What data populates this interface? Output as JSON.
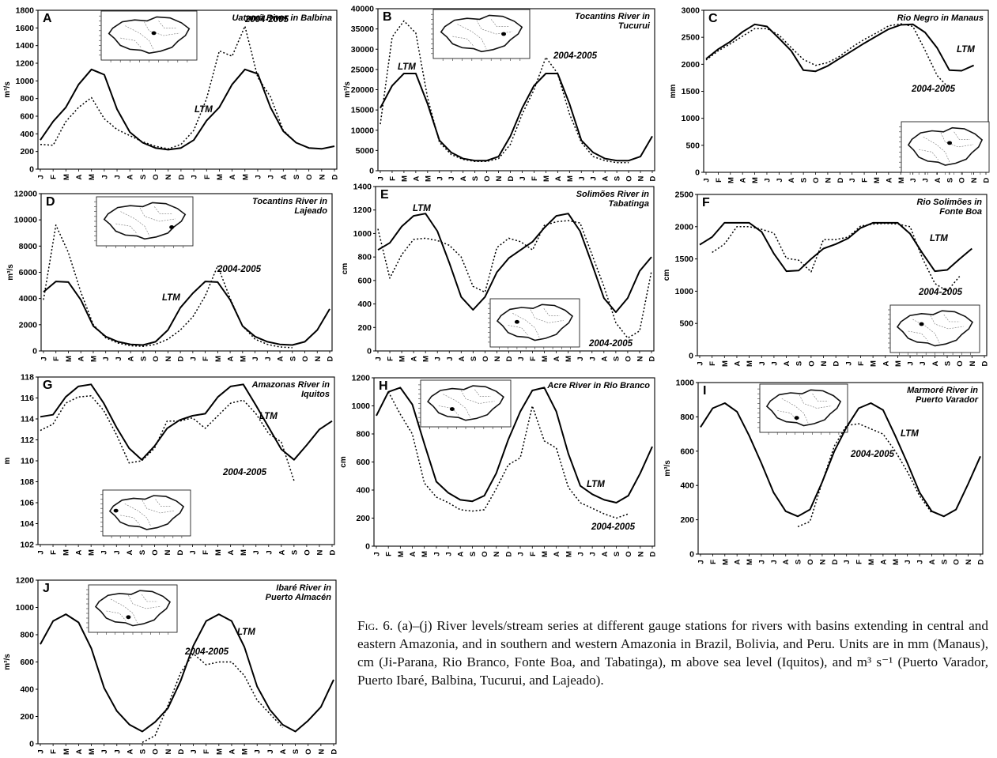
{
  "months": [
    "J",
    "F",
    "M",
    "A",
    "M",
    "J",
    "J",
    "A",
    "S",
    "O",
    "N",
    "D",
    "J",
    "F",
    "M",
    "A",
    "M",
    "J",
    "J",
    "A",
    "S",
    "O",
    "N",
    "D"
  ],
  "legend": {
    "ltm": "LTM",
    "recent": "2004-2005"
  },
  "chart_data": [
    {
      "id": "A",
      "type": "line",
      "title": "Uatumã River in Balbina",
      "ylabel": "m³/s",
      "ylim": [
        0,
        1800
      ],
      "yticks": [
        0,
        200,
        400,
        600,
        800,
        1000,
        1200,
        1400,
        1600,
        1800
      ],
      "series": [
        {
          "name": "LTM",
          "values": [
            330,
            540,
            700,
            960,
            1130,
            1070,
            680,
            420,
            300,
            240,
            220,
            240,
            330,
            550,
            700,
            960,
            1130,
            1080,
            700,
            430,
            300,
            240,
            230,
            260
          ]
        },
        {
          "name": "2004-2005",
          "values": [
            280,
            270,
            540,
            700,
            810,
            570,
            450,
            380,
            310,
            260,
            230,
            280,
            440,
            800,
            1340,
            1280,
            1620,
            1040,
            820,
            440,
            300,
            240,
            null,
            null
          ]
        }
      ]
    },
    {
      "id": "B",
      "type": "line",
      "title": "Tocantins River in Tucurui",
      "ylabel": "m³/s",
      "ylim": [
        0,
        40000
      ],
      "yticks": [
        0,
        5000,
        10000,
        15000,
        20000,
        25000,
        30000,
        35000,
        40000
      ],
      "series": [
        {
          "name": "LTM",
          "values": [
            15500,
            21000,
            24000,
            24000,
            16500,
            7500,
            4500,
            3000,
            2500,
            2500,
            3500,
            8500,
            15500,
            21000,
            24000,
            24000,
            16500,
            7500,
            4500,
            3000,
            2500,
            2500,
            3500,
            8500
          ]
        },
        {
          "name": "2004-2005",
          "values": [
            11500,
            33000,
            37000,
            34000,
            18000,
            7000,
            4000,
            2800,
            2300,
            2300,
            3000,
            6500,
            14000,
            20000,
            28000,
            24000,
            14000,
            7000,
            3500,
            2500,
            2000,
            2000,
            null,
            null
          ]
        }
      ]
    },
    {
      "id": "C",
      "type": "line",
      "title": "Rio Negro in Manaus",
      "ylabel": "mm",
      "ylim": [
        0,
        3000
      ],
      "yticks": [
        0,
        500,
        1000,
        1500,
        2000,
        2500,
        3000
      ],
      "series": [
        {
          "name": "LTM",
          "values": [
            2100,
            2280,
            2420,
            2600,
            2740,
            2700,
            2480,
            2250,
            1890,
            1870,
            1970,
            2110,
            2250,
            2390,
            2520,
            2650,
            2730,
            2740,
            2590,
            2300,
            1890,
            1880,
            1980,
            null
          ]
        },
        {
          "name": "2004-2005",
          "values": [
            2080,
            2250,
            2380,
            2520,
            2660,
            2660,
            2540,
            2310,
            2090,
            1980,
            2030,
            2150,
            2320,
            2460,
            2580,
            2710,
            2750,
            2700,
            2260,
            1790,
            1550,
            null,
            null,
            null
          ]
        }
      ]
    },
    {
      "id": "D",
      "type": "line",
      "title": "Tocantins River in Lajeado",
      "ylabel": "m³/s",
      "ylim": [
        0,
        12000
      ],
      "yticks": [
        0,
        2000,
        4000,
        6000,
        8000,
        10000,
        12000
      ],
      "series": [
        {
          "name": "LTM",
          "values": [
            4500,
            5300,
            5250,
            3900,
            1900,
            1100,
            700,
            500,
            450,
            700,
            1600,
            3300,
            4400,
            5300,
            5250,
            3900,
            1900,
            1100,
            700,
            500,
            450,
            700,
            1600,
            3200
          ]
        },
        {
          "name": "2004-2005",
          "values": [
            3900,
            9600,
            7500,
            4500,
            2000,
            1000,
            600,
            400,
            350,
            500,
            900,
            1600,
            2600,
            4200,
            6500,
            4000,
            1900,
            900,
            500,
            300,
            250,
            null,
            null,
            null
          ]
        }
      ]
    },
    {
      "id": "E",
      "type": "line",
      "title": "Solimões River in Tabatinga",
      "ylabel": "cm",
      "ylim": [
        0,
        1400
      ],
      "yticks": [
        0,
        200,
        400,
        600,
        800,
        1000,
        1200,
        1400
      ],
      "series": [
        {
          "name": "LTM",
          "values": [
            860,
            920,
            1060,
            1150,
            1170,
            1020,
            750,
            460,
            350,
            460,
            670,
            790,
            860,
            930,
            1050,
            1150,
            1170,
            1020,
            740,
            450,
            330,
            450,
            680,
            800
          ]
        },
        {
          "name": "2004-2005",
          "values": [
            1040,
            620,
            820,
            950,
            960,
            940,
            900,
            800,
            550,
            500,
            880,
            960,
            930,
            860,
            1070,
            1100,
            1110,
            1090,
            820,
            550,
            240,
            110,
            170,
            680
          ]
        }
      ]
    },
    {
      "id": "F",
      "type": "line",
      "title": "Rio Solimões in Fonte Boa",
      "ylabel": "cm",
      "ylim": [
        0,
        2500
      ],
      "yticks": [
        0,
        500,
        1000,
        1500,
        2000,
        2500
      ],
      "series": [
        {
          "name": "LTM",
          "values": [
            1720,
            1840,
            2060,
            2060,
            2060,
            1920,
            1580,
            1310,
            1320,
            1500,
            1660,
            1730,
            1820,
            1980,
            2060,
            2060,
            2060,
            1890,
            1590,
            1310,
            1330,
            1500,
            1660,
            null
          ]
        },
        {
          "name": "2004-2005",
          "values": [
            null,
            1600,
            1730,
            2000,
            2000,
            1960,
            1900,
            1510,
            1480,
            1300,
            1800,
            1800,
            1840,
            2010,
            2040,
            2050,
            2040,
            2000,
            1510,
            1120,
            1000,
            1230,
            null,
            null
          ]
        }
      ]
    },
    {
      "id": "G",
      "type": "line",
      "title": "Amazonas River in Iquitos",
      "ylabel": "m",
      "ylim": [
        102,
        118
      ],
      "yticks": [
        102,
        104,
        106,
        108,
        110,
        112,
        114,
        116,
        118
      ],
      "series": [
        {
          "name": "LTM",
          "values": [
            114.2,
            114.4,
            116.1,
            117.1,
            117.3,
            115.5,
            113.2,
            111.2,
            110.1,
            111.4,
            113.1,
            113.9,
            114.3,
            114.5,
            116.1,
            117.1,
            117.3,
            115.3,
            113.2,
            111.1,
            110.1,
            111.5,
            113.0,
            113.8
          ]
        },
        {
          "name": "2004-2005",
          "values": [
            112.9,
            113.5,
            115.5,
            116.1,
            116.2,
            114.8,
            112.5,
            109.8,
            110.0,
            111.2,
            113.8,
            113.8,
            114.1,
            113.1,
            114.3,
            115.5,
            115.8,
            114.5,
            112.6,
            111.8,
            108.1,
            null,
            null,
            null
          ]
        }
      ]
    },
    {
      "id": "H",
      "type": "line",
      "title": "Acre River in Rio Branco",
      "ylabel": "cm",
      "ylim": [
        0,
        1200
      ],
      "yticks": [
        0,
        200,
        400,
        600,
        800,
        1000,
        1200
      ],
      "series": [
        {
          "name": "LTM",
          "values": [
            930,
            1100,
            1130,
            1010,
            730,
            460,
            380,
            330,
            320,
            360,
            520,
            760,
            960,
            1110,
            1130,
            960,
            660,
            430,
            370,
            330,
            310,
            360,
            520,
            710
          ]
        },
        {
          "name": "2004-2005",
          "values": [
            null,
            1100,
            940,
            800,
            450,
            350,
            310,
            260,
            250,
            260,
            410,
            580,
            630,
            1000,
            750,
            700,
            420,
            310,
            270,
            230,
            200,
            230,
            null,
            null
          ]
        }
      ]
    },
    {
      "id": "I",
      "type": "line",
      "title": "Marmoré River in Puerto Varador",
      "ylabel": "m³/s",
      "ylim": [
        0,
        1000
      ],
      "yticks": [
        0,
        200,
        400,
        600,
        800,
        1000
      ],
      "series": [
        {
          "name": "LTM",
          "values": [
            740,
            850,
            880,
            830,
            690,
            530,
            360,
            250,
            220,
            260,
            420,
            600,
            740,
            850,
            880,
            840,
            690,
            530,
            360,
            250,
            220,
            260,
            410,
            570
          ]
        },
        {
          "name": "2004-2005",
          "values": [
            null,
            null,
            null,
            null,
            null,
            null,
            null,
            null,
            160,
            190,
            420,
            630,
            750,
            760,
            730,
            700,
            600,
            480,
            340,
            240,
            null,
            null,
            null,
            null
          ]
        }
      ]
    },
    {
      "id": "J",
      "type": "line",
      "title": "Ibaré River in Puerto Almacén",
      "ylabel": "m³/s",
      "ylim": [
        0,
        1200
      ],
      "yticks": [
        0,
        200,
        400,
        600,
        800,
        1000,
        1200
      ],
      "series": [
        {
          "name": "LTM",
          "values": [
            730,
            900,
            950,
            890,
            700,
            410,
            240,
            140,
            90,
            160,
            260,
            460,
            720,
            900,
            950,
            900,
            710,
            420,
            250,
            140,
            90,
            170,
            270,
            470
          ]
        },
        {
          "name": "2004-2005",
          "values": [
            null,
            null,
            null,
            null,
            null,
            null,
            null,
            null,
            10,
            60,
            280,
            520,
            660,
            580,
            600,
            600,
            500,
            320,
            220,
            120,
            null,
            null,
            null,
            null
          ]
        }
      ]
    }
  ],
  "caption": {
    "lead": "Fig. 6.",
    "text": " (a)–(j) River levels/stream series at different gauge stations for rivers with basins extending in central and eastern Amazonia, and in southern and western Amazonia in Brazil, Bolivia, and Peru. Units are in mm (Manaus), cm (Ji-Parana, Rio Branco, Fonte Boa, and Tabatinga), m above sea level (Iquitos), and m³ s⁻¹ (Puerto Varador, Puerto Ibaré, Balbina, Tucurui, and Lajeado)."
  }
}
